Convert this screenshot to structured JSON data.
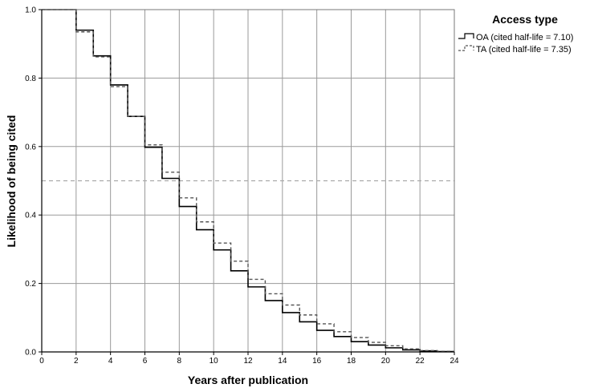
{
  "chart_data": {
    "type": "line",
    "step": true,
    "xlabel": "Years after publication",
    "ylabel": "Likelihood of being cited",
    "xlim": [
      0,
      24
    ],
    "ylim": [
      0,
      1.0
    ],
    "x_ticks": [
      "0",
      "2",
      "4",
      "6",
      "8",
      "10",
      "12",
      "14",
      "16",
      "18",
      "20",
      "22",
      "24"
    ],
    "y_ticks": [
      "0.0",
      "0.2",
      "0.4",
      "0.6",
      "0.8",
      "1.0"
    ],
    "grid": true,
    "reference_line": {
      "y": 0.5,
      "style": "dashed"
    },
    "legend": {
      "title": "Access type",
      "position": "top-right",
      "entries": [
        "OA (cited half-life = 7.10)",
        "TA (cited half-life = 7.35)"
      ]
    },
    "series": [
      {
        "name": "OA (cited half-life = 7.10)",
        "style": "solid",
        "color": "#000000",
        "x": [
          0,
          2,
          3,
          4,
          5,
          6,
          7,
          8,
          9,
          10,
          11,
          12,
          13,
          14,
          15,
          16,
          17,
          18,
          19,
          20,
          21,
          22,
          23,
          24
        ],
        "y": [
          1.0,
          0.94,
          0.865,
          0.78,
          0.688,
          0.598,
          0.507,
          0.425,
          0.357,
          0.298,
          0.237,
          0.19,
          0.15,
          0.115,
          0.088,
          0.063,
          0.045,
          0.03,
          0.02,
          0.012,
          0.006,
          0.003,
          0.001,
          0.001
        ]
      },
      {
        "name": "TA (cited half-life = 7.35)",
        "style": "dashed",
        "color": "#555555",
        "x": [
          0,
          2,
          3,
          4,
          5,
          6,
          7,
          8,
          9,
          10,
          11,
          12,
          13,
          14,
          15,
          16,
          17,
          18,
          19,
          20,
          21,
          22,
          23,
          24
        ],
        "y": [
          1.0,
          0.935,
          0.862,
          0.775,
          0.688,
          0.605,
          0.525,
          0.45,
          0.38,
          0.318,
          0.265,
          0.212,
          0.17,
          0.137,
          0.108,
          0.082,
          0.059,
          0.042,
          0.028,
          0.018,
          0.009,
          0.004,
          0.002,
          0.002
        ]
      }
    ]
  }
}
